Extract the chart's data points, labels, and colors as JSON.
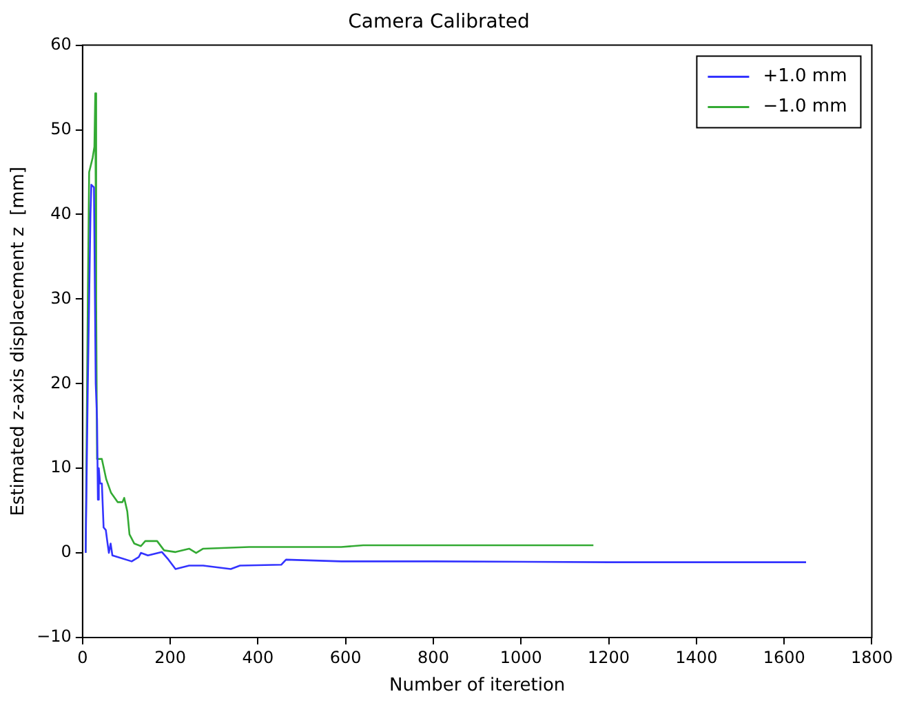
{
  "chart_data": {
    "type": "line",
    "title": "Camera Calibrated",
    "xlabel": "Number of iteretion",
    "ylabel": "Estimated z-axis displacement z  [mm]",
    "xlim": [
      0,
      1800
    ],
    "xticks": [
      0,
      200,
      400,
      600,
      800,
      1000,
      1200,
      1400,
      1600,
      1800
    ],
    "ylim": [
      -10,
      60
    ],
    "yticks": [
      -10,
      0,
      10,
      20,
      30,
      40,
      50,
      60
    ],
    "grid": false,
    "legend": "top right",
    "marker": "none",
    "line_style": "solid",
    "series": [
      {
        "name": "+1.0 mm",
        "color": "#3333ff",
        "x": [
          7,
          12,
          18,
          20,
          26,
          30,
          33,
          35,
          37,
          40,
          44,
          48,
          53,
          56,
          60,
          64,
          68,
          81,
          112,
          128,
          133,
          149,
          181,
          196,
          212,
          243,
          275,
          338,
          359,
          453,
          464,
          590,
          800,
          1200,
          1650
        ],
        "values": [
          0,
          20,
          40,
          43.5,
          43.2,
          20,
          15.8,
          6.3,
          10,
          8.2,
          8.2,
          3,
          2.7,
          1.5,
          0,
          1.1,
          -0.3,
          -0.5,
          -1,
          -0.5,
          0,
          -0.3,
          0.1,
          -0.8,
          -1.9,
          -1.5,
          -1.5,
          -1.9,
          -1.5,
          -1.4,
          -0.8,
          -1,
          -1,
          -1.1,
          -1.1
        ]
      },
      {
        "name": "−1.0 mm",
        "color": "#33aa33",
        "x": [
          7,
          12,
          15,
          23,
          27,
          29,
          31,
          33,
          44,
          54,
          65,
          80,
          91,
          95,
          102,
          107,
          118,
          133,
          143,
          170,
          186,
          212,
          243,
          259,
          275,
          380,
          590,
          640,
          800,
          1165
        ],
        "values": [
          0,
          30,
          45,
          46.7,
          48,
          54.3,
          30,
          11.1,
          11.1,
          8.7,
          7.1,
          6,
          6,
          6.5,
          4.9,
          2.2,
          1.1,
          0.8,
          1.4,
          1.4,
          0.3,
          0.1,
          0.5,
          0,
          0.5,
          0.7,
          0.7,
          0.9,
          0.9,
          0.9
        ]
      }
    ]
  }
}
